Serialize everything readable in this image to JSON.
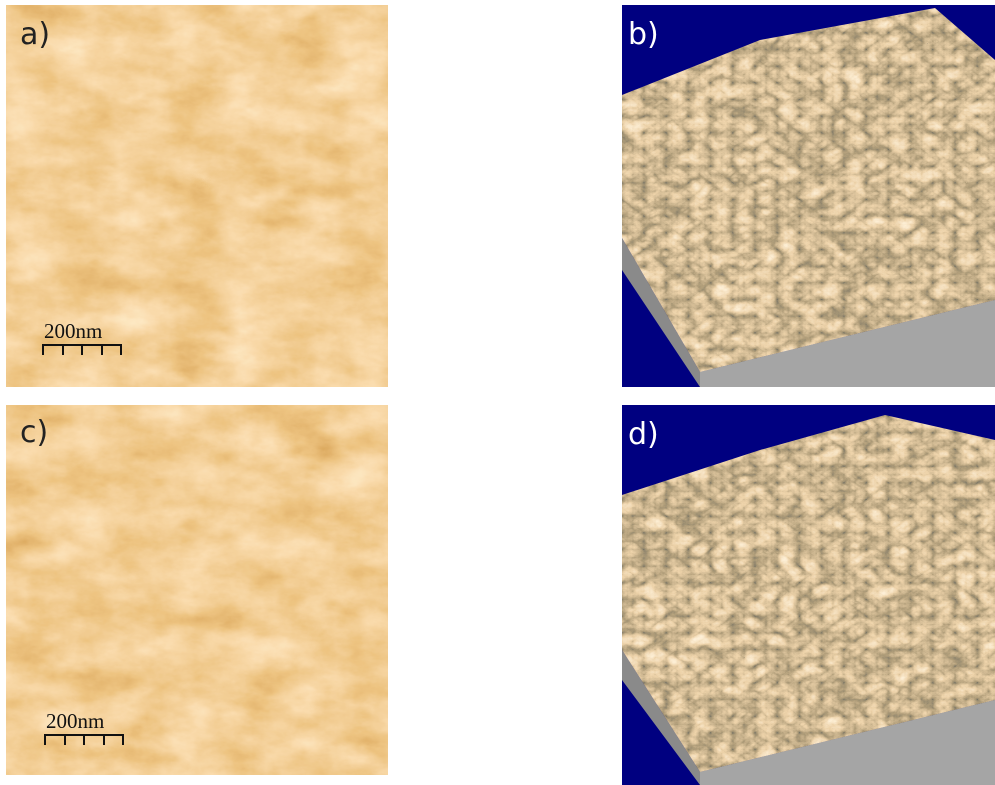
{
  "panels": [
    {
      "label": "a)",
      "scale_bar": "200nm"
    },
    {
      "label": "b)"
    },
    {
      "label": "c)",
      "scale_bar": "200nm"
    },
    {
      "label": "d)"
    }
  ]
}
